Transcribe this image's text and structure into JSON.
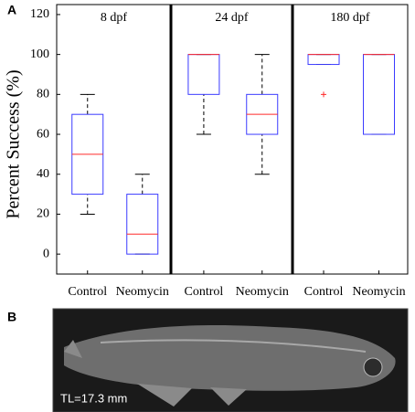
{
  "panel_a_label": "A",
  "chart_data": [
    {
      "type": "box",
      "title": "8 dpf",
      "ylabel": "Percent Success (%)",
      "categories": [
        "Control",
        "Neomycin"
      ],
      "boxes": [
        {
          "min": 20,
          "q1": 30,
          "median": 50,
          "q3": 70,
          "max": 80,
          "outliers": []
        },
        {
          "min": 0,
          "q1": 0,
          "median": 10,
          "q3": 30,
          "max": 40,
          "outliers": []
        }
      ],
      "box_color": "#3b3bff",
      "median_color": "#ff2a2a",
      "whisker_color": "#000000",
      "ylim": [
        -10,
        125
      ],
      "yticks": [
        0,
        20,
        40,
        60,
        80,
        100,
        120
      ]
    },
    {
      "type": "box",
      "title": "24 dpf",
      "categories": [
        "Control",
        "Neomycin"
      ],
      "boxes": [
        {
          "min": 60,
          "q1": 80,
          "median": 100,
          "q3": 100,
          "max": 100,
          "outliers": []
        },
        {
          "min": 40,
          "q1": 60,
          "median": 70,
          "q3": 80,
          "max": 100,
          "outliers": []
        }
      ],
      "box_color": "#3b3bff",
      "median_color": "#ff2a2a",
      "whisker_color": "#000000",
      "ylim": [
        -10,
        125
      ]
    },
    {
      "type": "box",
      "title": "180 dpf",
      "categories": [
        "Control",
        "Neomycin"
      ],
      "boxes": [
        {
          "min": 95,
          "q1": 95,
          "median": 100,
          "q3": 100,
          "max": 100,
          "outliers": [
            80
          ]
        },
        {
          "min": 60,
          "q1": 60,
          "median": 100,
          "q3": 100,
          "max": 100,
          "outliers": []
        }
      ],
      "box_color": "#3b3bff",
      "median_color": "#ff2a2a",
      "whisker_color": "#000000",
      "ylim": [
        -10,
        125
      ]
    }
  ],
  "panel_b": {
    "label": "B",
    "scale_text": "TL=17.3 mm"
  }
}
